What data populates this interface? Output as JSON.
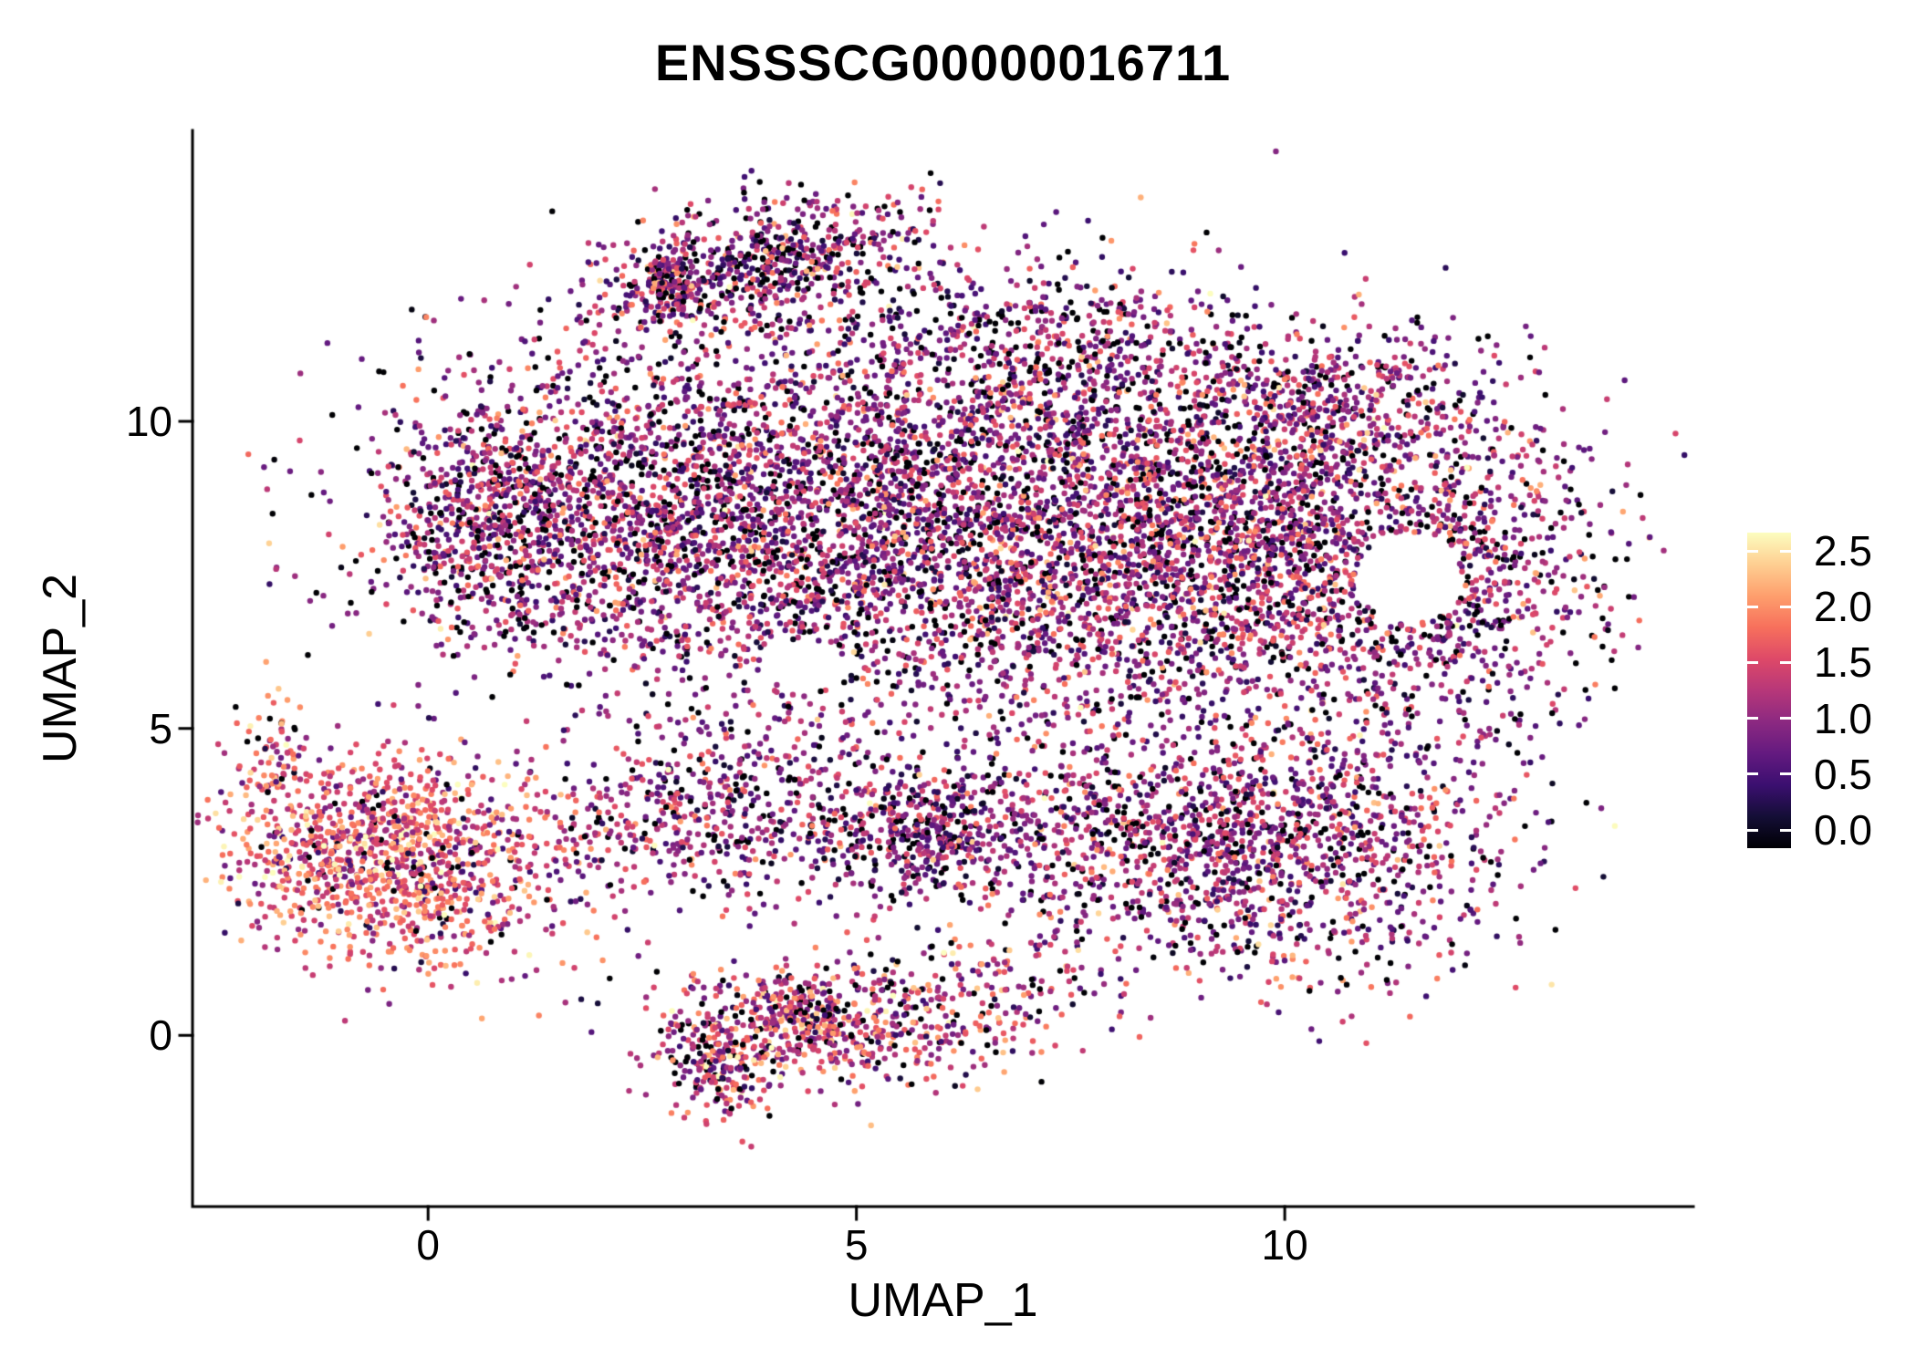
{
  "chart_data": {
    "type": "scatter",
    "title": "ENSSSCG00000016711",
    "xlabel": "UMAP_1",
    "ylabel": "UMAP_2",
    "x_ticks": [
      0,
      5,
      10
    ],
    "y_ticks": [
      0,
      5,
      10
    ],
    "xlim": [
      -2.75,
      14.77
    ],
    "ylim": [
      -2.79,
      14.74
    ],
    "grid": false,
    "background": "#ffffff",
    "axis_color": "#000000",
    "point_radius_px": 3.2,
    "seed": 7,
    "colorbar": {
      "position": "right",
      "ticks": [
        "2.5",
        "2.0",
        "1.5",
        "1.0",
        "0.5",
        "0.0"
      ],
      "value_range": [
        0,
        2.5
      ],
      "colormap": "magma",
      "stops": [
        "#000004",
        "#140e36",
        "#3b0f70",
        "#641a80",
        "#8c2981",
        "#b73779",
        "#de4968",
        "#f7705c",
        "#fe9f6d",
        "#fecf92",
        "#fcfdbf"
      ]
    },
    "holes": [
      {
        "cx": 11.45,
        "cy": 7.45,
        "rx": 0.62,
        "ry": 0.75
      },
      {
        "cx": 4.4,
        "cy": 6.0,
        "rx": 0.45,
        "ry": 0.38
      }
    ],
    "clusters": [
      {
        "name": "main-left-edge",
        "cx": 0.6,
        "cy": 8.4,
        "sx": 0.55,
        "sy": 1.0,
        "rot": 0,
        "n": 450,
        "expr": {
          "zero": 0.13,
          "mean": 1.05,
          "sd": 0.5
        }
      },
      {
        "name": "main-left",
        "cx": 2.8,
        "cy": 8.6,
        "sx": 1.55,
        "sy": 1.35,
        "rot": -5,
        "n": 2000,
        "expr": {
          "zero": 0.13,
          "mean": 1.05,
          "sd": 0.5
        }
      },
      {
        "name": "main-center",
        "cx": 6.0,
        "cy": 8.2,
        "sx": 1.9,
        "sy": 1.6,
        "rot": 0,
        "n": 2600,
        "expr": {
          "zero": 0.14,
          "mean": 1.05,
          "sd": 0.5
        }
      },
      {
        "name": "main-right",
        "cx": 9.2,
        "cy": 8.0,
        "sx": 1.6,
        "sy": 1.5,
        "rot": 0,
        "n": 2300,
        "expr": {
          "zero": 0.13,
          "mean": 1.1,
          "sd": 0.5
        }
      },
      {
        "name": "far-right",
        "cx": 11.9,
        "cy": 7.4,
        "sx": 0.95,
        "sy": 1.35,
        "rot": 0,
        "n": 800,
        "expr": {
          "zero": 0.15,
          "mean": 1.0,
          "sd": 0.5
        }
      },
      {
        "name": "top-band",
        "cx": 3.9,
        "cy": 12.55,
        "sx": 1.05,
        "sy": 0.5,
        "rot": 14,
        "n": 650,
        "expr": {
          "zero": 0.17,
          "mean": 1.0,
          "sd": 0.55
        }
      },
      {
        "name": "top-band-clump",
        "cx": 2.8,
        "cy": 12.2,
        "sx": 0.22,
        "sy": 0.3,
        "rot": 0,
        "n": 130,
        "expr": {
          "zero": 0.12,
          "mean": 1.1,
          "sd": 0.5
        }
      },
      {
        "name": "top-mid-bump",
        "cx": 7.0,
        "cy": 11.1,
        "sx": 1.5,
        "sy": 0.8,
        "rot": 0,
        "n": 600,
        "expr": {
          "zero": 0.16,
          "mean": 1.0,
          "sd": 0.55
        }
      },
      {
        "name": "top-right-bump",
        "cx": 10.3,
        "cy": 10.3,
        "sx": 1.1,
        "sy": 0.65,
        "rot": 0,
        "n": 420,
        "expr": {
          "zero": 0.15,
          "mean": 1.0,
          "sd": 0.5
        }
      },
      {
        "name": "left-cluster-core",
        "cx": -0.5,
        "cy": 2.8,
        "sx": 0.9,
        "sy": 0.78,
        "rot": -8,
        "n": 950,
        "expr": {
          "zero": 0.05,
          "mean": 1.55,
          "sd": 0.5
        }
      },
      {
        "name": "left-cluster-halo",
        "cx": -0.4,
        "cy": 3.0,
        "sx": 1.35,
        "sy": 1.05,
        "rot": -8,
        "n": 260,
        "expr": {
          "zero": 0.08,
          "mean": 1.35,
          "sd": 0.5
        }
      },
      {
        "name": "left-tail",
        "cx": -1.8,
        "cy": 4.5,
        "sx": 0.22,
        "sy": 0.5,
        "rot": 0,
        "n": 80,
        "expr": {
          "zero": 0.08,
          "mean": 1.5,
          "sd": 0.5
        }
      },
      {
        "name": "mid-band",
        "cx": 5.0,
        "cy": 3.4,
        "sx": 2.0,
        "sy": 0.75,
        "rot": 0,
        "n": 750,
        "expr": {
          "zero": 0.13,
          "mean": 1.0,
          "sd": 0.5
        }
      },
      {
        "name": "mid-band-streak",
        "cx": 2.9,
        "cy": 3.9,
        "sx": 0.55,
        "sy": 0.85,
        "rot": -35,
        "n": 210,
        "expr": {
          "zero": 0.12,
          "mean": 0.95,
          "sd": 0.5
        }
      },
      {
        "name": "mid-band-clump",
        "cx": 5.8,
        "cy": 3.35,
        "sx": 0.55,
        "sy": 0.5,
        "rot": 0,
        "n": 260,
        "expr": {
          "zero": 0.12,
          "mean": 0.9,
          "sd": 0.5
        }
      },
      {
        "name": "right-lower",
        "cx": 9.7,
        "cy": 3.1,
        "sx": 1.5,
        "sy": 1.05,
        "rot": 0,
        "n": 1500,
        "expr": {
          "zero": 0.13,
          "mean": 1.05,
          "sd": 0.5
        }
      },
      {
        "name": "bottom-strip",
        "cx": 5.0,
        "cy": 0.15,
        "sx": 1.15,
        "sy": 0.55,
        "rot": 8,
        "n": 600,
        "expr": {
          "zero": 0.1,
          "mean": 1.3,
          "sd": 0.55
        }
      },
      {
        "name": "bottom-clump-left",
        "cx": 3.35,
        "cy": -0.45,
        "sx": 0.28,
        "sy": 0.5,
        "rot": 0,
        "n": 180,
        "expr": {
          "zero": 0.1,
          "mean": 1.3,
          "sd": 0.55
        }
      },
      {
        "name": "bottom-clump-mid",
        "cx": 4.25,
        "cy": 0.45,
        "sx": 0.3,
        "sy": 0.3,
        "rot": 0,
        "n": 140,
        "expr": {
          "zero": 0.1,
          "mean": 1.35,
          "sd": 0.55
        }
      },
      {
        "name": "bottom-right-link",
        "cx": 6.9,
        "cy": 1.0,
        "sx": 0.6,
        "sy": 0.35,
        "rot": 0,
        "n": 60,
        "expr": {
          "zero": 0.12,
          "mean": 1.1,
          "sd": 0.5
        }
      }
    ]
  }
}
